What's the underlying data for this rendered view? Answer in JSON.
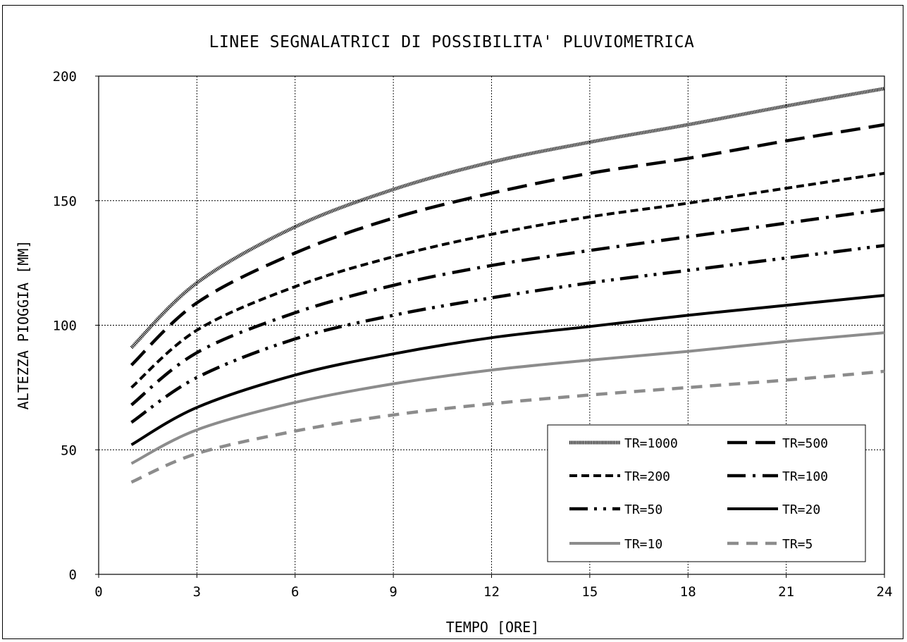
{
  "chart_data": {
    "type": "line",
    "title": "LINEE SEGNALATRICI DI POSSIBILITA' PLUVIOMETRICA",
    "xlabel": "TEMPO [ORE]",
    "ylabel": "ALTEZZA PIOGGIA [MM]",
    "xlim": [
      0,
      24
    ],
    "ylim": [
      0,
      200
    ],
    "x_ticks": [
      0,
      3,
      6,
      9,
      12,
      15,
      18,
      21,
      24
    ],
    "y_ticks": [
      0,
      50,
      100,
      150,
      200
    ],
    "x_tick_labels": [
      "0",
      "3",
      "6",
      "9",
      "12",
      "15",
      "18",
      "21",
      "24"
    ],
    "y_tick_labels": [
      "0",
      "50",
      "100",
      "150",
      "200"
    ],
    "grid": true,
    "legend_position": "bottom-right",
    "series": [
      {
        "name": "TR=1000",
        "style": "dotted-thick",
        "color": "#000000",
        "x": [
          1,
          3,
          6,
          9,
          12,
          15,
          18,
          21,
          24
        ],
        "y": [
          91,
          117,
          139.5,
          154.5,
          165.5,
          173.5,
          180.5,
          188,
          195
        ]
      },
      {
        "name": "TR=500",
        "style": "long-dash",
        "color": "#000000",
        "x": [
          1,
          3,
          6,
          9,
          12,
          15,
          18,
          21,
          24
        ],
        "y": [
          84,
          109,
          129,
          143,
          153,
          161,
          167,
          174,
          180.5
        ]
      },
      {
        "name": "TR=200",
        "style": "short-dash",
        "color": "#000000",
        "x": [
          1,
          3,
          6,
          9,
          12,
          15,
          18,
          21,
          24
        ],
        "y": [
          75,
          98,
          115.5,
          127.5,
          136.5,
          143.5,
          149,
          155,
          161
        ]
      },
      {
        "name": "TR=100",
        "style": "dash-dot",
        "color": "#000000",
        "x": [
          1,
          3,
          6,
          9,
          12,
          15,
          18,
          21,
          24
        ],
        "y": [
          68,
          89,
          105,
          116,
          124,
          130,
          135.5,
          141,
          146.5
        ]
      },
      {
        "name": "TR=50",
        "style": "dash-dot-dot",
        "color": "#000000",
        "x": [
          1,
          3,
          6,
          9,
          12,
          15,
          18,
          21,
          24
        ],
        "y": [
          61,
          79,
          94.5,
          104,
          111,
          117,
          122,
          127,
          132
        ]
      },
      {
        "name": "TR=20",
        "style": "solid",
        "color": "#000000",
        "x": [
          1,
          3,
          6,
          9,
          12,
          15,
          18,
          21,
          24
        ],
        "y": [
          52,
          67,
          80,
          88.5,
          95,
          99.5,
          104,
          108,
          112
        ]
      },
      {
        "name": "TR=10",
        "style": "solid",
        "color": "#8c8c8c",
        "x": [
          1,
          3,
          6,
          9,
          12,
          15,
          18,
          21,
          24
        ],
        "y": [
          44.5,
          58,
          69,
          76.5,
          82,
          86,
          89.5,
          93.5,
          97
        ]
      },
      {
        "name": "TR=5",
        "style": "dash",
        "color": "#8c8c8c",
        "x": [
          1,
          3,
          6,
          9,
          12,
          15,
          18,
          21,
          24
        ],
        "y": [
          37,
          48.5,
          57.5,
          64,
          68.5,
          72,
          75,
          78,
          81.5
        ]
      }
    ]
  }
}
